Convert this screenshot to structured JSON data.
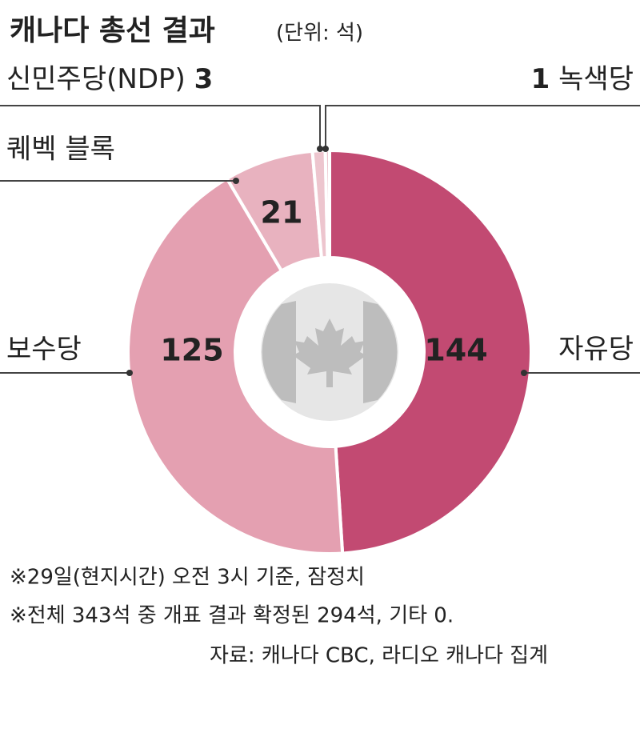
{
  "chart_data": {
    "type": "donut",
    "title": "캐나다 총선 결과",
    "subtitle": "(단위: 석)",
    "categories": [
      "자유당",
      "보수당",
      "퀘벡 블록",
      "신민주당(NDP)",
      "녹색당"
    ],
    "values": [
      144,
      125,
      21,
      3,
      1
    ],
    "colors": [
      "#c24a72",
      "#e4a0b1",
      "#e8b2bf",
      "#edc5ce",
      "#edc5ce"
    ],
    "notes": [
      "※29일(현지시간) 오전 3시 기준, 잠정치",
      "※전체 343석 중 개표 결과 확정된 294석, 기타 0.",
      "자료: 캐나다 CBC, 라디오 캐나다 집계"
    ]
  }
}
